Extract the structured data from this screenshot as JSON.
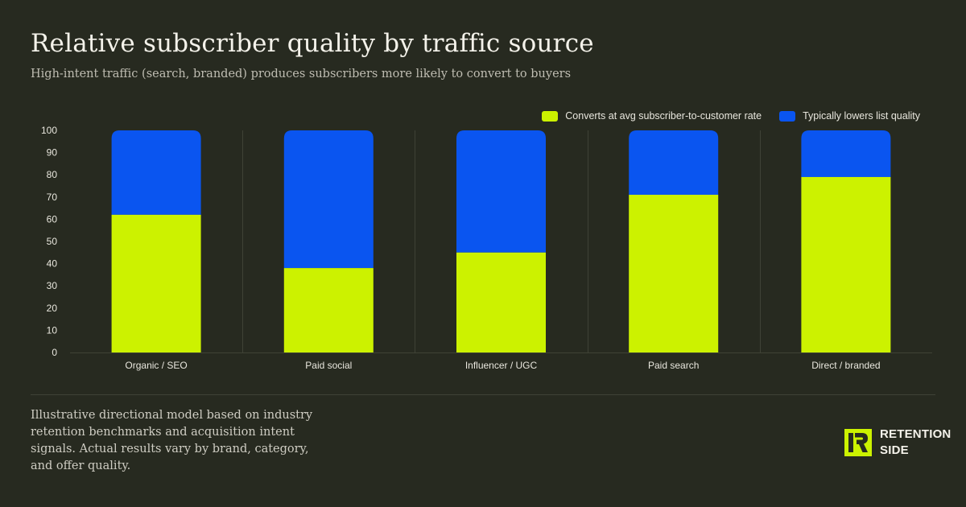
{
  "title": "Relative subscriber quality by traffic source",
  "subtitle": "High-intent traffic (search, branded) produces subscribers more likely to convert to buyers",
  "legend": [
    {
      "label": "Converts at avg subscriber-to-customer rate",
      "color": "#ccf200"
    },
    {
      "label": "Typically lowers list quality",
      "color": "#0a55f0"
    }
  ],
  "footnote": "Illustrative directional model based on industry retention benchmarks and acquisition intent signals. Actual results vary by brand, category, and offer quality.",
  "brand": {
    "name": "RETENTION\nSIDE"
  },
  "colors": {
    "background": "#272a20",
    "good": "#ccf200",
    "bad": "#0a55f0",
    "grid": "#3f4236",
    "axis_text": "#e9e7de"
  },
  "chart_data": {
    "type": "bar",
    "stacked": true,
    "categories": [
      "Organic / SEO",
      "Paid social",
      "Influencer / UGC",
      "Paid search",
      "Direct / branded"
    ],
    "series": [
      {
        "name": "Converts at avg subscriber-to-customer rate",
        "values": [
          62,
          38,
          45,
          71,
          79
        ],
        "color": "#ccf200"
      },
      {
        "name": "Typically lowers list quality",
        "values": [
          38,
          62,
          55,
          29,
          21
        ],
        "color": "#0a55f0"
      }
    ],
    "ylim": [
      0,
      100
    ],
    "yticks": [
      0,
      10,
      20,
      30,
      40,
      50,
      60,
      70,
      80,
      90,
      100
    ],
    "xlabel": "",
    "ylabel": "",
    "grid": "vertical separators between categories",
    "legend_position": "top-right"
  }
}
